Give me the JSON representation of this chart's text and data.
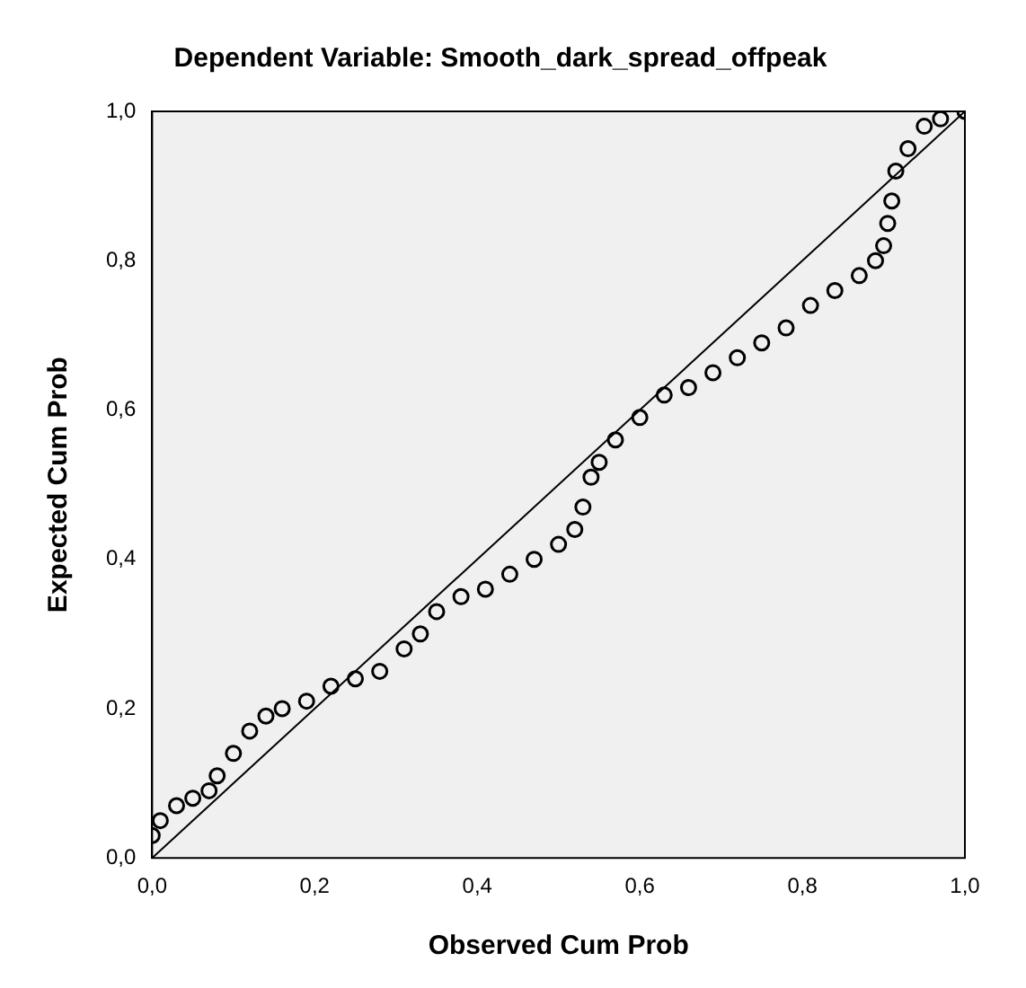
{
  "chart_data": {
    "type": "scatter",
    "title": "Dependent Variable: Smooth_dark_spread_offpeak",
    "xlabel": "Observed Cum Prob",
    "ylabel": "Expected Cum Prob",
    "xlim": [
      0,
      1
    ],
    "ylim": [
      0,
      1
    ],
    "xticks": [
      {
        "value": 0,
        "label": "0,0"
      },
      {
        "value": 0.2,
        "label": "0,2"
      },
      {
        "value": 0.4,
        "label": "0,4"
      },
      {
        "value": 0.6,
        "label": "0,6"
      },
      {
        "value": 0.8,
        "label": "0,8"
      },
      {
        "value": 1,
        "label": "1,0"
      }
    ],
    "yticks": [
      {
        "value": 0,
        "label": "0,0"
      },
      {
        "value": 0.2,
        "label": "0,2"
      },
      {
        "value": 0.4,
        "label": "0,4"
      },
      {
        "value": 0.6,
        "label": "0,6"
      },
      {
        "value": 0.8,
        "label": "0,8"
      },
      {
        "value": 1,
        "label": "1,0"
      }
    ],
    "grid": false,
    "legend": false,
    "marker": "circle",
    "series": [
      {
        "color": "#000000",
        "x": [
          0.0,
          0.01,
          0.03,
          0.05,
          0.07,
          0.08,
          0.1,
          0.12,
          0.14,
          0.16,
          0.19,
          0.22,
          0.25,
          0.28,
          0.31,
          0.33,
          0.35,
          0.38,
          0.41,
          0.44,
          0.47,
          0.5,
          0.52,
          0.53,
          0.54,
          0.55,
          0.57,
          0.6,
          0.63,
          0.66,
          0.69,
          0.72,
          0.75,
          0.78,
          0.81,
          0.84,
          0.87,
          0.89,
          0.9,
          0.905,
          0.91,
          0.915,
          0.93,
          0.95,
          0.97,
          1.0
        ],
        "values": [
          0.03,
          0.05,
          0.07,
          0.08,
          0.09,
          0.11,
          0.14,
          0.17,
          0.19,
          0.2,
          0.21,
          0.23,
          0.24,
          0.25,
          0.28,
          0.3,
          0.33,
          0.35,
          0.36,
          0.38,
          0.4,
          0.42,
          0.44,
          0.47,
          0.51,
          0.53,
          0.56,
          0.59,
          0.62,
          0.63,
          0.65,
          0.67,
          0.69,
          0.71,
          0.74,
          0.76,
          0.78,
          0.8,
          0.82,
          0.85,
          0.88,
          0.92,
          0.95,
          0.98,
          0.99,
          1.0
        ]
      },
      {
        "type": "line",
        "color": "#000000",
        "marker": "none",
        "x": [
          0,
          1
        ],
        "values": [
          0,
          1
        ]
      }
    ]
  }
}
